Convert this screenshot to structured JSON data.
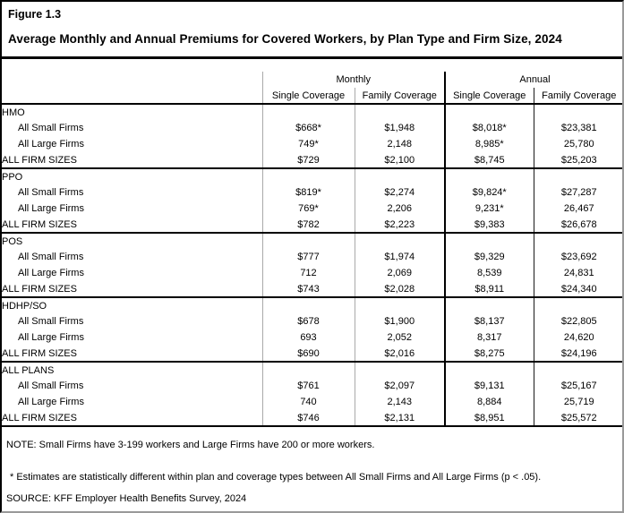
{
  "figure_label": "Figure 1.3",
  "title": "Average Monthly and Annual Premiums for Covered Workers, by Plan Type and Firm Size, 2024",
  "table": {
    "groups": [
      "Monthly",
      "Annual"
    ],
    "sub_headers": [
      "Single Coverage",
      "Family Coverage",
      "Single Coverage",
      "Family Coverage"
    ],
    "sections": [
      {
        "name": "HMO",
        "rows": [
          {
            "label": "All Small Firms",
            "indent": true,
            "bold": false,
            "values": [
              "$668*",
              "$1,948",
              "$8,018*",
              "$23,381"
            ]
          },
          {
            "label": "All Large Firms",
            "indent": true,
            "bold": false,
            "values": [
              "749*",
              "2,148",
              "8,985*",
              "25,780"
            ]
          },
          {
            "label": "ALL FIRM SIZES",
            "indent": false,
            "bold": true,
            "values": [
              "$729",
              "$2,100",
              "$8,745",
              "$25,203"
            ]
          }
        ]
      },
      {
        "name": "PPO",
        "rows": [
          {
            "label": "All Small Firms",
            "indent": true,
            "bold": false,
            "values": [
              "$819*",
              "$2,274",
              "$9,824*",
              "$27,287"
            ]
          },
          {
            "label": "All Large Firms",
            "indent": true,
            "bold": false,
            "values": [
              "769*",
              "2,206",
              "9,231*",
              "26,467"
            ]
          },
          {
            "label": "ALL FIRM SIZES",
            "indent": false,
            "bold": true,
            "values": [
              "$782",
              "$2,223",
              "$9,383",
              "$26,678"
            ]
          }
        ]
      },
      {
        "name": "POS",
        "rows": [
          {
            "label": "All Small Firms",
            "indent": true,
            "bold": false,
            "values": [
              "$777",
              "$1,974",
              "$9,329",
              "$23,692"
            ]
          },
          {
            "label": "All Large Firms",
            "indent": true,
            "bold": false,
            "values": [
              "712",
              "2,069",
              "8,539",
              "24,831"
            ]
          },
          {
            "label": "ALL FIRM SIZES",
            "indent": false,
            "bold": true,
            "values": [
              "$743",
              "$2,028",
              "$8,911",
              "$24,340"
            ]
          }
        ]
      },
      {
        "name": "HDHP/SO",
        "rows": [
          {
            "label": "All Small Firms",
            "indent": true,
            "bold": false,
            "values": [
              "$678",
              "$1,900",
              "$8,137",
              "$22,805"
            ]
          },
          {
            "label": "All Large Firms",
            "indent": true,
            "bold": false,
            "values": [
              "693",
              "2,052",
              "8,317",
              "24,620"
            ]
          },
          {
            "label": "ALL FIRM SIZES",
            "indent": false,
            "bold": true,
            "values": [
              "$690",
              "$2,016",
              "$8,275",
              "$24,196"
            ]
          }
        ]
      },
      {
        "name": "ALL PLANS",
        "rows": [
          {
            "label": "All Small Firms",
            "indent": true,
            "bold": false,
            "values": [
              "$761",
              "$2,097",
              "$9,131",
              "$25,167"
            ]
          },
          {
            "label": "All Large Firms",
            "indent": true,
            "bold": false,
            "values": [
              "740",
              "2,143",
              "8,884",
              "25,719"
            ]
          },
          {
            "label": "ALL FIRM SIZES",
            "indent": false,
            "bold": true,
            "values": [
              "$746",
              "$2,131",
              "$8,951",
              "$25,572"
            ]
          }
        ]
      }
    ]
  },
  "notes": {
    "note": "NOTE: Small Firms have 3-199 workers and Large Firms have 200 or more workers.",
    "estimates": "* Estimates are statistically different within plan and coverage types between All Small Firms and All Large Firms (p < .05).",
    "source": "SOURCE: KFF Employer Health Benefits Survey, 2024"
  }
}
